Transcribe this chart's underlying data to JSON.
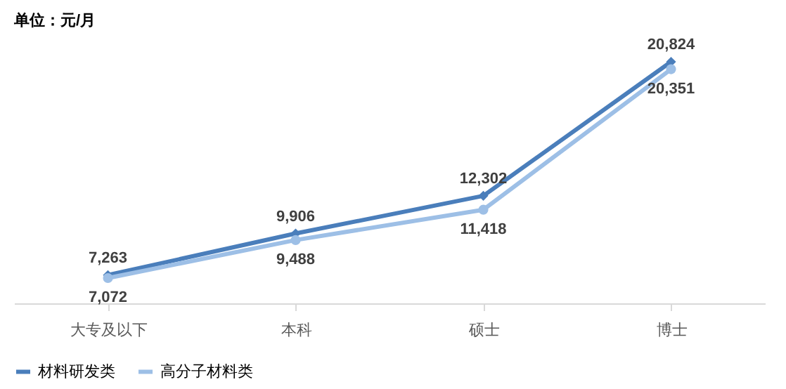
{
  "chart_data": {
    "type": "line",
    "annotations": [
      "单位：元/月"
    ],
    "categories": [
      "大专及以下",
      "本科",
      "硕士",
      "博士"
    ],
    "series": [
      {
        "name": "材料研发类",
        "color": "#4a7ebb",
        "marker": "diamond",
        "values": [
          7263,
          9906,
          12302,
          20824
        ],
        "value_labels": [
          "7,263",
          "9,906",
          "12,302",
          "20,824"
        ]
      },
      {
        "name": "高分子材料类",
        "color": "#9dbfe6",
        "marker": "circle",
        "values": [
          7072,
          9488,
          11418,
          20351
        ],
        "value_labels": [
          "7,072",
          "9,488",
          "11,418",
          "20,351"
        ]
      }
    ],
    "legend": "bottom",
    "grid": false
  }
}
